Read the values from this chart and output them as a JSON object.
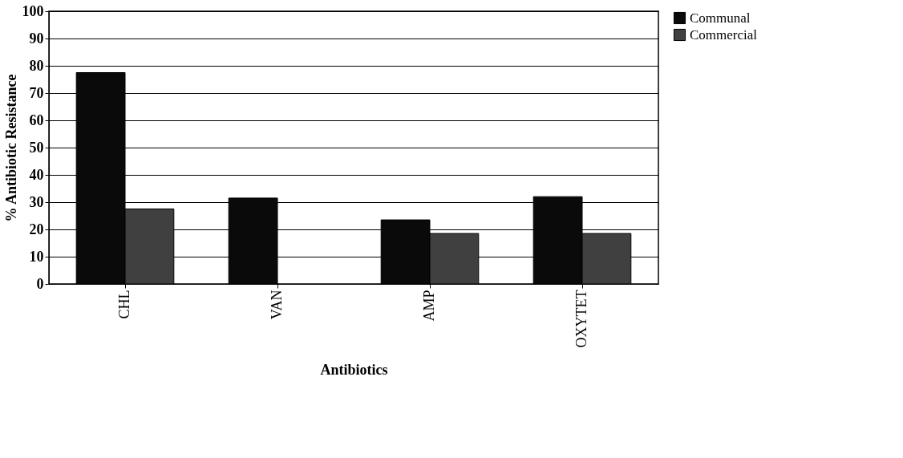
{
  "chart_data": {
    "type": "bar",
    "xlabel": "Antibiotics",
    "ylabel": "% Antibiotic Resistance",
    "categories": [
      "CHL",
      "VAN",
      "AMP",
      "OXYTET"
    ],
    "series": [
      {
        "name": "Communal",
        "color": "#0a0a0a",
        "values": [
          77.5,
          31.5,
          23.5,
          32
        ]
      },
      {
        "name": "Commercial",
        "color": "#404040",
        "values": [
          27.5,
          null,
          18.5,
          18.5
        ]
      }
    ],
    "ylim": [
      0,
      100
    ],
    "yticks": [
      0,
      10,
      20,
      30,
      40,
      50,
      60,
      70,
      80,
      90,
      100
    ],
    "grid": "y",
    "legend": "right"
  }
}
